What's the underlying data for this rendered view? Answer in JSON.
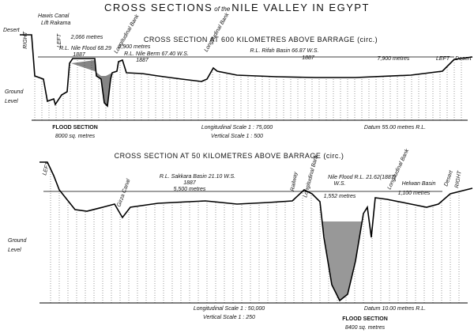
{
  "title_main": "CROSS SECTIONS",
  "title_of": "of the",
  "title_rest": "NILE VALLEY IN EGYPT",
  "upper": {
    "heading": "CROSS SECTION AT 600 KILOMETRES ABOVE BARRAGE (circ.)",
    "desert_right": "Desert",
    "right": "RIGHT",
    "hawis_canal": "Hawis Canal",
    "lift_rakama": "Lift Rakama",
    "left_bank_mark": "LEFT",
    "width_1": "2,066 metres",
    "nile_flood": "R.L. Nile Flood 68.29",
    "year_1": "1887",
    "bank_1": "Longitudinal Bank",
    "width_2": "3,900 metres",
    "nile_berm": "R.L. Nile Berm 67.40 W.S.",
    "year_2": "1887",
    "bank_2": "Longitudinal Bank",
    "rifah_basin": "R.L. Rifah Basin 66.87 W.S.",
    "year_3": "1887",
    "width_3": "7,900 metres",
    "left": "LEFT",
    "desert_left": "Desert",
    "ground": "Ground",
    "level": "Level",
    "flood_section": "FLOOD SECTION",
    "flood_area": "8000 sq. metres",
    "long_scale": "Longitudinal Scale 1 : 75,000",
    "vert_scale": "Vertical Scale 1 : 500",
    "datum": "Datum 55.00 metres R.L."
  },
  "lower": {
    "heading": "CROSS SECTION AT 50 KILOMETRES ABOVE BARRAGE (circ.)",
    "left": "LEFT",
    "sakkara_basin": "R.L. Sakkara Basin 21.10 W.S.",
    "year_1": "1887",
    "width_1": "5,500 metres",
    "girza_canal": "Girza Canal",
    "railway": "Railway",
    "bank_1": "Longitudinal Bank",
    "nile_flood": "Nile Flood R.L. 21.62(1887)",
    "ws": "W.S.",
    "width_2": "1,552 metres",
    "bank_2": "Longitudinal Bank",
    "helwan_basin": "Helwan Basin",
    "width_3": "1,100 metres",
    "desert": "Desert",
    "right": "RIGHT",
    "ground": "Ground",
    "level": "Level",
    "long_scale": "Longitudinal Scale 1 : 50,000",
    "vert_scale": "Vertical Scale 1 : 250",
    "datum": "Datum 10.00 metres R.L.",
    "flood_section": "FLOOD SECTION",
    "flood_area": "8400 sq. metres"
  }
}
